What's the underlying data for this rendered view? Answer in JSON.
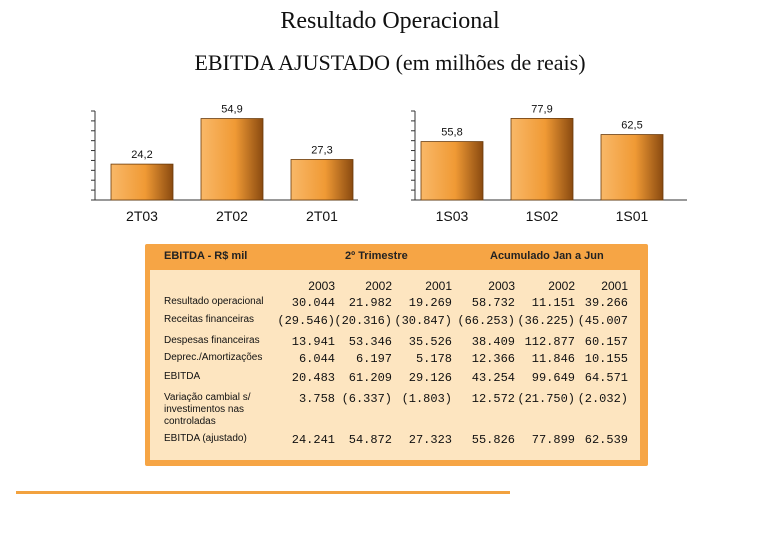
{
  "title": "Resultado Operacional",
  "subtitle": "EBITDA AJUSTADO  (em milhões de reais)",
  "chart_data": [
    {
      "type": "bar",
      "categories": [
        "2T03",
        "2T02",
        "2T01"
      ],
      "values": [
        24.2,
        54.9,
        27.3
      ],
      "value_labels": [
        "24,2",
        "54,9",
        "27,3"
      ],
      "ylim": [
        0,
        60
      ]
    },
    {
      "type": "bar",
      "categories": [
        "1S03",
        "1S02",
        "1S01"
      ],
      "values": [
        55.8,
        77.9,
        62.5
      ],
      "value_labels": [
        "55,8",
        "77,9",
        "62,5"
      ],
      "ylim": [
        0,
        85
      ]
    }
  ],
  "colors": {
    "bar_light": "#f7b060",
    "bar_dark": "#8a4a10",
    "panel": "#f6a545"
  },
  "table": {
    "corner_label": "EBITDA  - R$ mil",
    "group1": "2º Trimestre",
    "group2": "Acumulado Jan a Jun",
    "years": [
      "2003",
      "2002",
      "2001",
      "2003",
      "2002",
      "2001"
    ],
    "rows": [
      {
        "label": "Resultado operacional",
        "values": [
          "30.044",
          "21.982",
          "19.269",
          "58.732",
          "11.151",
          "39.266"
        ]
      },
      {
        "label": "Receitas financeiras",
        "values": [
          "(29.546)",
          "(20.316)",
          "(30.847)",
          "(66.253)",
          "(36.225)",
          "(45.007"
        ]
      },
      {
        "label": "Despesas financeiras",
        "values": [
          "13.941",
          "53.346",
          "35.526",
          "38.409",
          "112.877",
          "60.157"
        ]
      },
      {
        "label": "Deprec./Amortizações",
        "values": [
          "6.044",
          "6.197",
          "5.178",
          "12.366",
          "11.846",
          "10.155"
        ]
      },
      {
        "label": "EBITDA",
        "values": [
          "20.483",
          "61.209",
          "29.126",
          "43.254",
          "99.649",
          "64.571"
        ]
      },
      {
        "label": "Variação cambial s/ investimentos  nas controladas",
        "values": [
          "3.758",
          "(6.337)",
          "(1.803)",
          "12.572",
          "(21.750)",
          "(2.032)"
        ]
      },
      {
        "label": "EBITDA  (ajustado)",
        "values": [
          "24.241",
          "54.872",
          "27.323",
          "55.826",
          "77.899",
          "62.539"
        ]
      }
    ]
  }
}
